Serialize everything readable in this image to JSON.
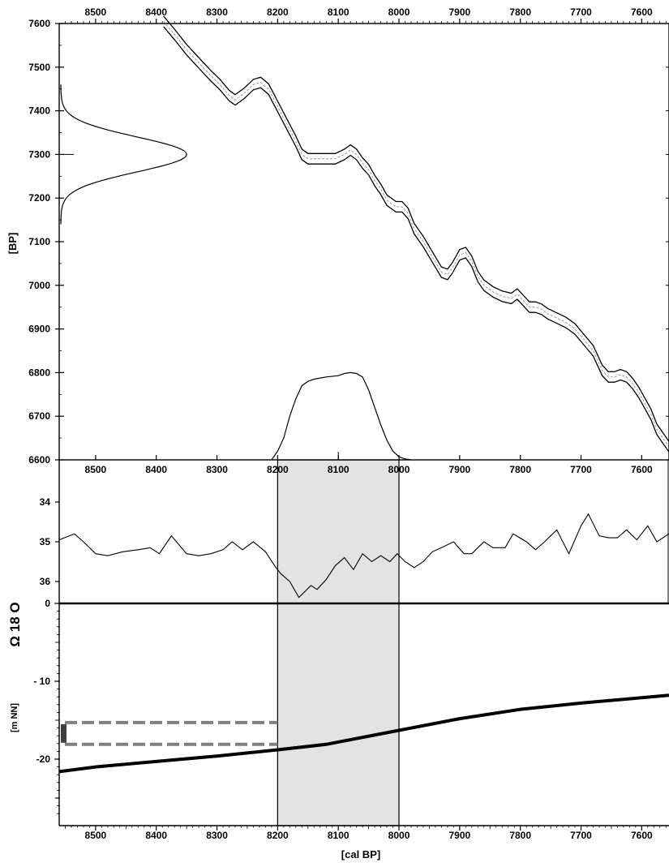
{
  "chart_data": [
    {
      "type": "line",
      "title": "",
      "xlabel": "",
      "ylabel": "[BP]",
      "xlim": [
        8560,
        7555
      ],
      "ylim": [
        6600,
        7600
      ],
      "x_ticks": [
        8500,
        8400,
        8300,
        8200,
        8100,
        8000,
        7900,
        7800,
        7700,
        7600
      ],
      "y_ticks": [
        7600,
        7500,
        7400,
        7300,
        7200,
        7100,
        7000,
        6900,
        6800,
        6700,
        6600
      ],
      "grid": false,
      "legend": "none",
      "series": [
        {
          "role": "calibration-curve-band",
          "x": [
            8388,
            8370,
            8350,
            8330,
            8310,
            8295,
            8280,
            8270,
            8255,
            8240,
            8228,
            8215,
            8200,
            8185,
            8170,
            8160,
            8150,
            8140,
            8120,
            8105,
            8090,
            8080,
            8070,
            8060,
            8050,
            8040,
            8030,
            8020,
            8005,
            7995,
            7985,
            7975,
            7960,
            7945,
            7930,
            7920,
            7912,
            7900,
            7890,
            7880,
            7870,
            7860,
            7845,
            7830,
            7815,
            7805,
            7795,
            7785,
            7775,
            7765,
            7755,
            7740,
            7725,
            7710,
            7695,
            7680,
            7665,
            7655,
            7645,
            7635,
            7625,
            7615,
            7605,
            7595,
            7585,
            7575,
            7565,
            7555
          ],
          "y": [
            7605,
            7575,
            7540,
            7510,
            7480,
            7460,
            7435,
            7425,
            7440,
            7460,
            7465,
            7450,
            7410,
            7370,
            7330,
            7300,
            7290,
            7290,
            7290,
            7290,
            7300,
            7310,
            7300,
            7280,
            7265,
            7240,
            7220,
            7195,
            7180,
            7180,
            7165,
            7130,
            7100,
            7065,
            7030,
            7025,
            7040,
            7070,
            7075,
            7055,
            7020,
            7000,
            6985,
            6975,
            6970,
            6980,
            6965,
            6950,
            6950,
            6945,
            6935,
            6925,
            6915,
            6900,
            6875,
            6850,
            6805,
            6790,
            6790,
            6795,
            6790,
            6775,
            6755,
            6730,
            6705,
            6670,
            6650,
            6630
          ],
          "band_half_width": 12
        },
        {
          "role": "radiocarbon-date-distribution",
          "center": 7300,
          "sigma": 40,
          "peak_x": 8350
        },
        {
          "role": "calibrated-age-distribution",
          "x": [
            8210,
            8200,
            8190,
            8180,
            8170,
            8160,
            8150,
            8140,
            8120,
            8100,
            8090,
            8080,
            8070,
            8060,
            8050,
            8040,
            8030,
            8020,
            8010,
            8000,
            7990,
            7980
          ],
          "y": [
            6600,
            6620,
            6650,
            6700,
            6740,
            6770,
            6780,
            6785,
            6790,
            6793,
            6798,
            6800,
            6798,
            6790,
            6760,
            6720,
            6680,
            6645,
            6620,
            6607,
            6602,
            6600
          ]
        }
      ],
      "annotations": [
        {
          "type": "tick",
          "y": 7300
        },
        {
          "type": "tick",
          "x": 8100
        }
      ]
    },
    {
      "type": "line",
      "title": "",
      "xlabel": "",
      "ylabel": "Ω 18 O",
      "xlim": [
        8560,
        7555
      ],
      "ylim": [
        36.5,
        33.6
      ],
      "x_ticks": [
        8500,
        8400,
        8300,
        8200,
        8100,
        8000,
        7900,
        7800,
        7700,
        7600
      ],
      "y_ticks": [
        34,
        35,
        36
      ],
      "grid": false,
      "legend": "none",
      "series": [
        {
          "role": "isotope-record",
          "x": [
            8560,
            8535,
            8520,
            8500,
            8480,
            8455,
            8430,
            8410,
            8395,
            8375,
            8350,
            8330,
            8310,
            8290,
            8275,
            8258,
            8240,
            8220,
            8205,
            8195,
            8180,
            8165,
            8145,
            8135,
            8120,
            8105,
            8090,
            8075,
            8060,
            8045,
            8030,
            8015,
            8003,
            7990,
            7975,
            7960,
            7945,
            7930,
            7910,
            7893,
            7880,
            7860,
            7845,
            7825,
            7812,
            7790,
            7775,
            7760,
            7740,
            7720,
            7700,
            7688,
            7670,
            7655,
            7640,
            7625,
            7608,
            7590,
            7575,
            7555
          ],
          "y": [
            34.95,
            34.8,
            35.0,
            35.3,
            35.35,
            35.25,
            35.2,
            35.15,
            35.3,
            34.85,
            35.3,
            35.35,
            35.3,
            35.2,
            35.0,
            35.2,
            35.0,
            35.25,
            35.6,
            35.8,
            36.0,
            36.4,
            36.1,
            36.2,
            35.95,
            35.6,
            35.4,
            35.7,
            35.3,
            35.5,
            35.35,
            35.5,
            35.3,
            35.5,
            35.65,
            35.5,
            35.25,
            35.15,
            35.0,
            35.3,
            35.3,
            35.0,
            35.15,
            35.15,
            34.8,
            35.0,
            35.2,
            35.0,
            34.7,
            35.3,
            34.6,
            34.3,
            34.85,
            34.9,
            34.9,
            34.7,
            34.95,
            34.6,
            35.0,
            34.8
          ]
        }
      ],
      "highlight_range": [
        8200,
        8000
      ]
    },
    {
      "type": "line",
      "title": "",
      "xlabel": "[cal BP]",
      "ylabel": "[m NN]",
      "xlim": [
        8560,
        7555
      ],
      "ylim": [
        -28,
        0
      ],
      "x_ticks": [
        8500,
        8400,
        8300,
        8200,
        8100,
        8000,
        7900,
        7800,
        7700,
        7600
      ],
      "y_ticks": [
        0,
        -10,
        -20
      ],
      "y_tick_labels": [
        "0",
        "- 10",
        "-20"
      ],
      "grid": false,
      "legend": "none",
      "series": [
        {
          "role": "sea-level-curve",
          "x": [
            8560,
            8500,
            8400,
            8300,
            8200,
            8120,
            8000,
            7900,
            7800,
            7700,
            7600,
            7555
          ],
          "y": [
            -21.6,
            -21.0,
            -20.3,
            -19.6,
            -18.8,
            -18.1,
            -16.3,
            -14.8,
            -13.6,
            -12.8,
            -12.1,
            -11.8
          ]
        }
      ],
      "reference_lines": [
        {
          "y": -15.3,
          "style": "dashed",
          "color": "#808080"
        },
        {
          "y": -18.1,
          "style": "dashed",
          "color": "#808080"
        }
      ],
      "range_bar": [
        -15.3,
        -18.1
      ],
      "highlight_range": [
        8200,
        8000
      ]
    }
  ],
  "colors": {
    "line": "#000000",
    "band_inner": "#9a9a9a",
    "highlight_fill": "#e3e3e3",
    "dashed": "#808080",
    "range_bar": "#404040"
  }
}
